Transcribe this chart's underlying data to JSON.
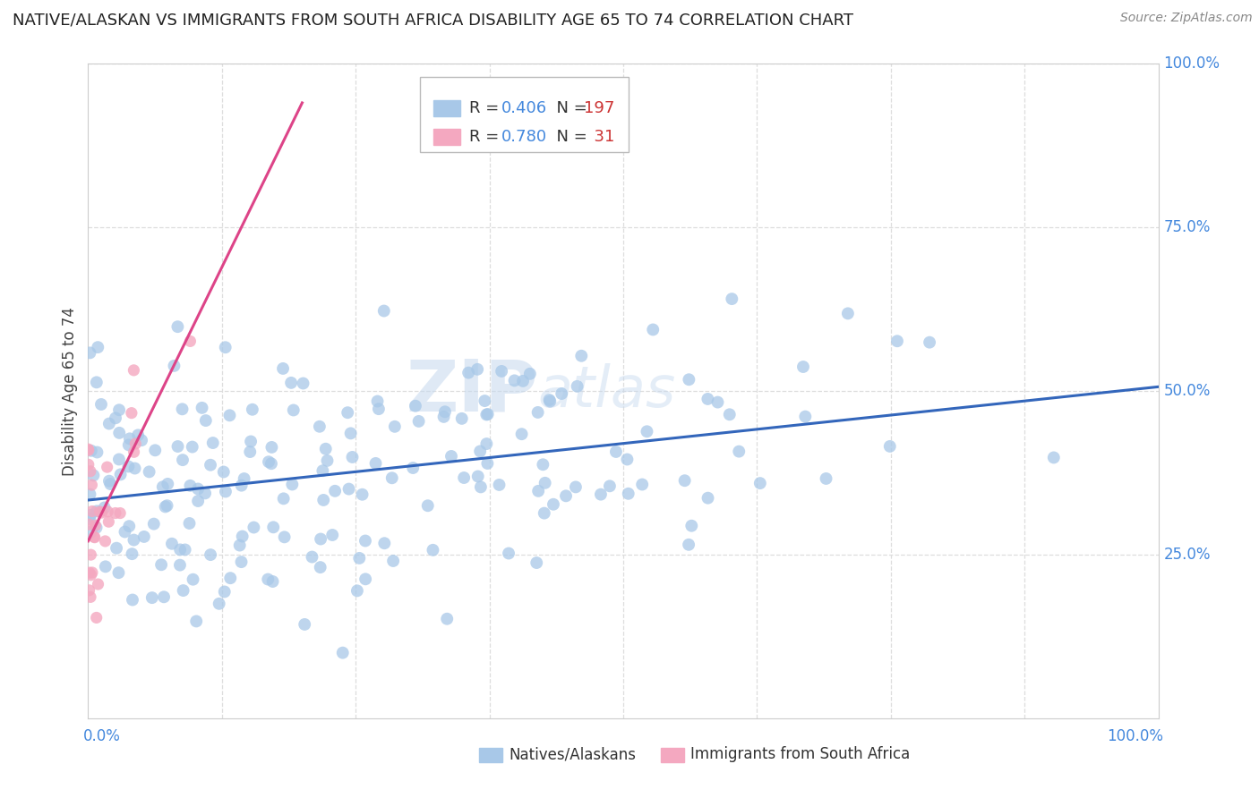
{
  "title": "NATIVE/ALASKAN VS IMMIGRANTS FROM SOUTH AFRICA DISABILITY AGE 65 TO 74 CORRELATION CHART",
  "source": "Source: ZipAtlas.com",
  "ylabel": "Disability Age 65 to 74",
  "legend_label_1": "Natives/Alaskans",
  "legend_label_2": "Immigrants from South Africa",
  "R1": 0.406,
  "N1": 197,
  "R2": 0.78,
  "N2": 31,
  "color1": "#a8c8e8",
  "color2": "#f4a8c0",
  "line_color1": "#3366bb",
  "line_color2": "#dd4488",
  "watermark_zip": "ZIP",
  "watermark_atlas": "atlas",
  "background": "#ffffff",
  "grid_color": "#dddddd",
  "title_color": "#222222",
  "source_color": "#888888",
  "R_color": "#4488dd",
  "N_color": "#cc3333",
  "axis_color": "#4488dd",
  "seed": 42
}
